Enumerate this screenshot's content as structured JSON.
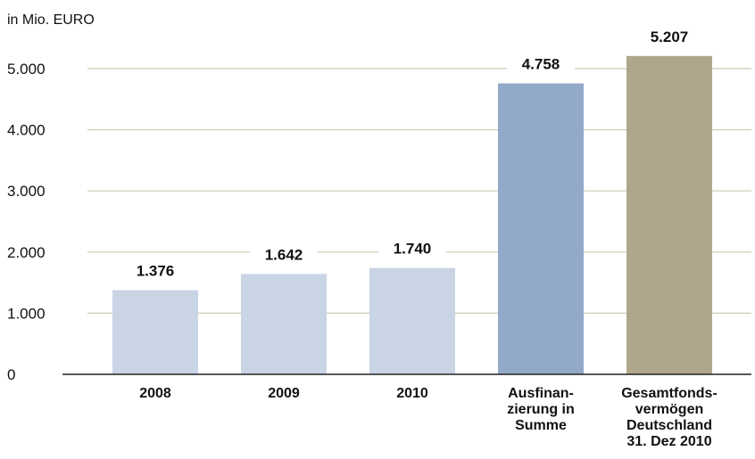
{
  "chart_data": {
    "type": "bar",
    "unit_label": "in Mio. EURO",
    "categories": [
      [
        "2008"
      ],
      [
        "2009"
      ],
      [
        "2010"
      ],
      [
        "Ausfinan-",
        "zierung in",
        "Summe"
      ],
      [
        "Gesamtfonds-",
        "vermögen",
        "Deutschland",
        "31. Dez 2010"
      ]
    ],
    "values": [
      1376,
      1642,
      1740,
      4758,
      5207
    ],
    "data_labels": [
      "1.376",
      "1.642",
      "1.740",
      "4.758",
      "5.207"
    ],
    "bar_colors": [
      "#c9d4e4",
      "#c9d4e4",
      "#c9d4e4",
      "#93a9c8",
      "#b0a68c"
    ],
    "grid_color": "#cfcab8",
    "axis_color": "#222222",
    "ylim": [
      0,
      5000
    ],
    "yticks": [
      0,
      1000,
      2000,
      3000,
      4000,
      5000
    ],
    "ytick_labels": [
      "0",
      "1.000",
      "2.000",
      "3.000",
      "4.000",
      "5.000"
    ],
    "grid": true
  }
}
